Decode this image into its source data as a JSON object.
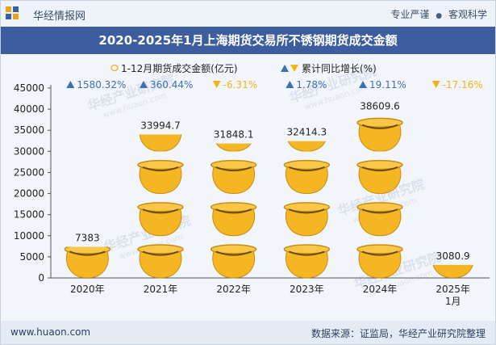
{
  "header": {
    "brand": "华经情报网",
    "tags": [
      "专业严谨",
      "客观科学"
    ]
  },
  "title": "2020-2025年1月上海期货交易所不锈钢期货成交金额",
  "footer": {
    "website": "www.huaon.com",
    "source": "数据来源：证监局，华经产业研究院整理"
  },
  "watermark": "华经产业研究院",
  "watermark_url": "www.huaon.com",
  "colors": {
    "coin": "#f5b624",
    "coin_dark": "#c98d0e",
    "up": "#3d6fb6",
    "down": "#f2b21e",
    "title_bg": "#3d5d9e"
  },
  "chart_data": {
    "type": "bar",
    "categories": [
      "2020年",
      "2021年",
      "2022年",
      "2023年",
      "2024年",
      "2025年\n1月"
    ],
    "series": [
      {
        "name": "1-12月期货成交金额(亿元)",
        "values": [
          7383,
          33994.7,
          31848.1,
          32414.3,
          38609.6,
          3080.9
        ]
      },
      {
        "name": "累计同比增长(%)",
        "values": [
          1580.32,
          360.44,
          -6.31,
          1.78,
          19.11,
          -17.16
        ]
      }
    ],
    "value_labels": [
      "7383",
      "33994.7",
      "31848.1",
      "32414.3",
      "38609.6",
      "3080.9"
    ],
    "growth_labels": [
      "1580.32%",
      "360.44%",
      "-6.31%",
      "1.78%",
      "19.11%",
      "-17.16%"
    ],
    "ylim": [
      0,
      45000
    ],
    "yticks": [
      0,
      5000,
      10000,
      15000,
      20000,
      25000,
      30000,
      35000,
      40000,
      45000
    ],
    "legend_position": "top-center",
    "grid": false
  }
}
